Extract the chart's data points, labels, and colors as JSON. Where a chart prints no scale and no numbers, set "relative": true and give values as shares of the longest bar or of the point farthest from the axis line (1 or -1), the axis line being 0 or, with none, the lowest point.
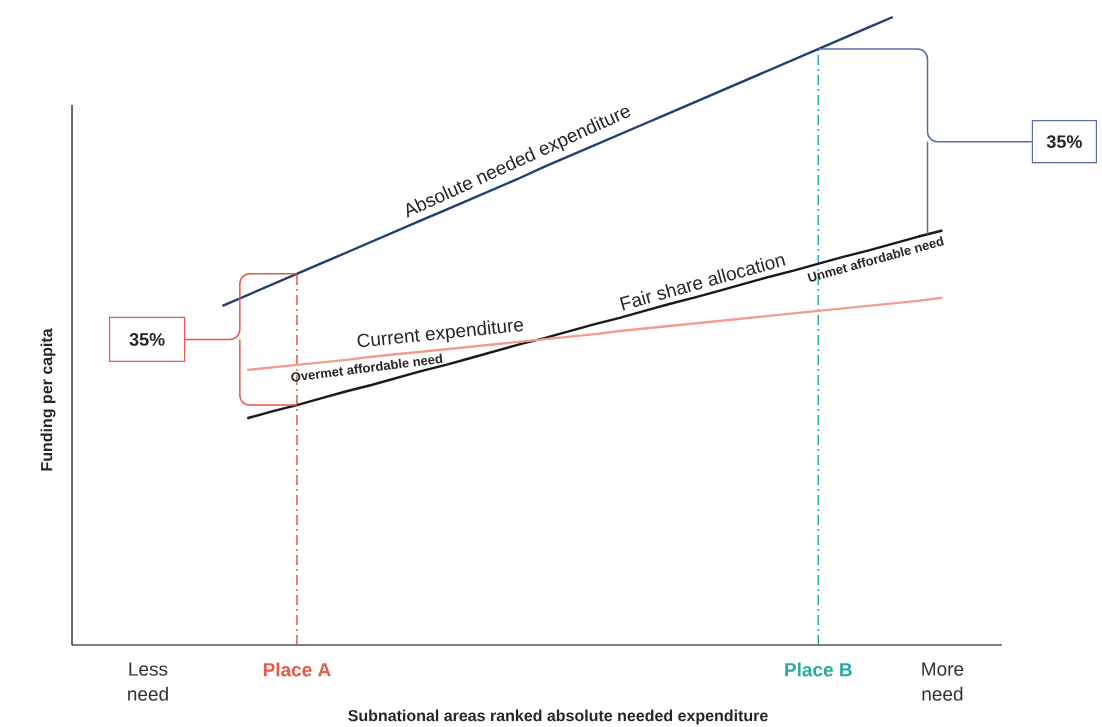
{
  "chart_data": {
    "type": "line",
    "relative": true,
    "xlabel": "Subnational areas ranked absolute needed expenditure",
    "ylabel": "Funding per capita",
    "categories": [
      "Less need",
      null,
      null,
      null,
      null,
      null,
      "Place A",
      null,
      null,
      null,
      null,
      null,
      null,
      null,
      null,
      null,
      null,
      null,
      null,
      null,
      null,
      null,
      null,
      null,
      null,
      null,
      null,
      "Place B",
      null,
      null,
      null,
      null,
      "More need"
    ],
    "series": [
      {
        "name": "Absolute needed expenditure",
        "color": "#1f3f73",
        "values": [
          null,
          null,
          null,
          0.54,
          0.557,
          0.574,
          0.591,
          0.608,
          0.625,
          0.642,
          0.659,
          0.676,
          0.693,
          0.71,
          0.727,
          0.744,
          0.762,
          0.779,
          0.796,
          0.813,
          0.83,
          0.847,
          0.864,
          0.881,
          0.898,
          0.915,
          0.932,
          0.949,
          0.966,
          0.983,
          1.0,
          null,
          null
        ]
      },
      {
        "name": "Fair share allocation",
        "color": "#1a1a1a",
        "values": [
          null,
          null,
          null,
          null,
          0.361,
          0.372,
          0.382,
          0.393,
          0.404,
          0.414,
          0.425,
          0.436,
          0.446,
          0.457,
          0.468,
          0.479,
          0.489,
          0.5,
          0.511,
          0.521,
          0.532,
          0.543,
          0.553,
          0.564,
          0.575,
          0.586,
          0.596,
          0.607,
          0.618,
          0.628,
          0.639,
          0.65,
          0.66
        ]
      },
      {
        "name": "Current expenditure",
        "color": "#f29b8f",
        "values": [
          null,
          null,
          null,
          null,
          0.438,
          0.442,
          0.446,
          0.45,
          0.454,
          0.459,
          0.463,
          0.467,
          0.471,
          0.475,
          0.479,
          0.483,
          0.487,
          0.491,
          0.495,
          0.5,
          0.504,
          0.508,
          0.512,
          0.516,
          0.52,
          0.524,
          0.528,
          0.532,
          0.536,
          0.54,
          0.544,
          0.548,
          0.553
        ]
      }
    ],
    "ref_lines": [
      {
        "axis": "x",
        "value": "Place A",
        "color": "#e8574a"
      },
      {
        "axis": "x",
        "value": "Place B",
        "color": "#2aa9a4"
      }
    ],
    "annotations": [
      "Overmet affordable need",
      "Unmet affordable need",
      "35%",
      "35%"
    ]
  }
}
